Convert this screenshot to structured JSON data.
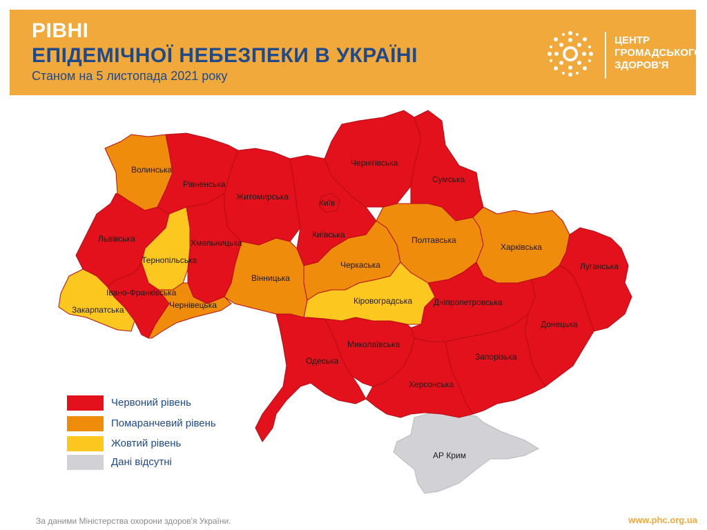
{
  "header": {
    "title_line1": "РІВНІ",
    "title_line2": "ЕПІДЕМІЧНОЇ НЕБЕЗПЕКИ В УКРАЇНІ",
    "subtitle": "Станом на 5 листопада 2021 року",
    "logo_line1": "ЦЕНТР",
    "logo_line2": "ГРОМАДСЬКОГО",
    "logo_line3": "ЗДОРОВ'Я"
  },
  "colors": {
    "red": "#e2111c",
    "orange": "#ef8c0b",
    "yellow": "#fcc820",
    "gray": "#d2d2d6",
    "header_bg": "#f2a93b",
    "brand_blue": "#1e4a8c"
  },
  "regions": [
    {
      "name": "Волинська",
      "level": "orange"
    },
    {
      "name": "Рівненська",
      "level": "red"
    },
    {
      "name": "Житомирська",
      "level": "red"
    },
    {
      "name": "Київ",
      "level": "red"
    },
    {
      "name": "Київська",
      "level": "red"
    },
    {
      "name": "Чернігівська",
      "level": "red"
    },
    {
      "name": "Сумська",
      "level": "red"
    },
    {
      "name": "Львівська",
      "level": "red"
    },
    {
      "name": "Тернопільська",
      "level": "yellow"
    },
    {
      "name": "Хмельницька",
      "level": "red"
    },
    {
      "name": "Вінницька",
      "level": "orange"
    },
    {
      "name": "Черкаська",
      "level": "orange"
    },
    {
      "name": "Полтавська",
      "level": "orange"
    },
    {
      "name": "Харківська",
      "level": "orange"
    },
    {
      "name": "Луганська",
      "level": "red"
    },
    {
      "name": "Івано-Франківська",
      "level": "red"
    },
    {
      "name": "Закарпатська",
      "level": "yellow"
    },
    {
      "name": "Чернівецька",
      "level": "orange"
    },
    {
      "name": "Кіровоградська",
      "level": "yellow"
    },
    {
      "name": "Дніпропетровська",
      "level": "red"
    },
    {
      "name": "Донецька",
      "level": "red"
    },
    {
      "name": "Одеська",
      "level": "red"
    },
    {
      "name": "Миколаївська",
      "level": "red"
    },
    {
      "name": "Запорізька",
      "level": "red"
    },
    {
      "name": "Херсонська",
      "level": "red"
    },
    {
      "name": "АР Крим",
      "level": "gray"
    }
  ],
  "legend": [
    {
      "label": "Червоний рівень",
      "level": "red"
    },
    {
      "label": "Помаранчевий рівень",
      "level": "orange"
    },
    {
      "label": "Жовтий рівень",
      "level": "yellow"
    },
    {
      "label": "Дані відсутні",
      "level": "gray"
    }
  ],
  "footer": {
    "source": "За даними Міністерства охорони здоров'я України.",
    "url": "www.phc.org.ua"
  }
}
